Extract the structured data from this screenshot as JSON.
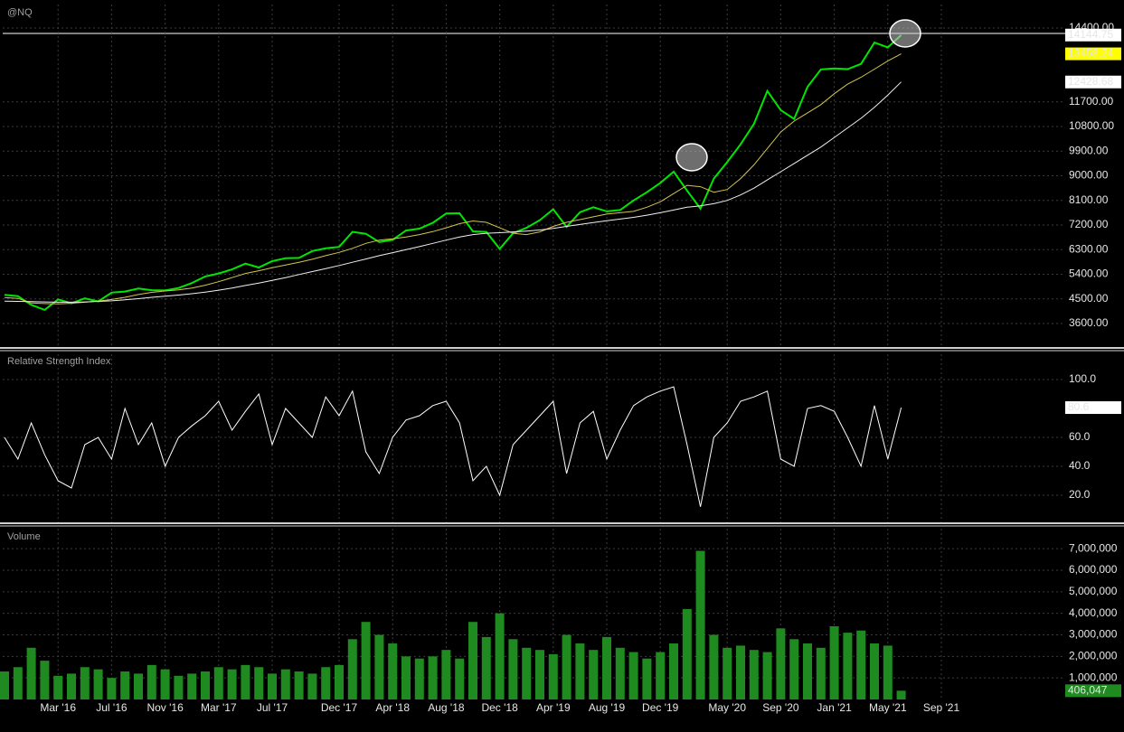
{
  "chart_data": [
    {
      "type": "line",
      "title": "@NQ",
      "grid": true,
      "ylim": [
        2775,
        15260
      ],
      "yticks": [
        {
          "value": 3600,
          "label": "3600.00"
        },
        {
          "value": 4500,
          "label": "4500.00"
        },
        {
          "value": 5400,
          "label": "5400.00"
        },
        {
          "value": 6300,
          "label": "6300.00"
        },
        {
          "value": 7200,
          "label": "7200.00"
        },
        {
          "value": 8100,
          "label": "8100.00"
        },
        {
          "value": 9000,
          "label": "9000.00"
        },
        {
          "value": 9900,
          "label": "9900.00"
        },
        {
          "value": 10800,
          "label": "10800.00"
        },
        {
          "value": 11700,
          "label": "11700.00"
        },
        {
          "value": 14400,
          "label": "14400.00"
        }
      ],
      "series": [
        {
          "color": "#00e600",
          "width": 2,
          "tag_color": "#ffffff",
          "values": [
            4650,
            4600,
            4280,
            4100,
            4480,
            4340,
            4520,
            4410,
            4730,
            4770,
            4880,
            4820,
            4810,
            4900,
            5080,
            5320,
            5430,
            5580,
            5790,
            5650,
            5880,
            5990,
            6000,
            6250,
            6350,
            6400,
            6950,
            6880,
            6580,
            6660,
            7000,
            7070,
            7280,
            7620,
            7630,
            6970,
            6950,
            6330,
            6900,
            7100,
            7380,
            7780,
            7130,
            7670,
            7850,
            7700,
            7750,
            8100,
            8400,
            8740,
            9150,
            8460,
            7800,
            8900,
            9500,
            10150,
            10900,
            12100,
            11400,
            11080,
            12250,
            12890,
            12920,
            12900,
            13090,
            13870,
            13690,
            14144.75,
            null,
            null,
            null
          ]
        },
        {
          "color": "#d4c64a",
          "width": 1,
          "tag_color": "#ffff00",
          "values": [
            4550,
            4520,
            4350,
            4330,
            4320,
            4340,
            4380,
            4420,
            4480,
            4560,
            4660,
            4740,
            4790,
            4830,
            4900,
            5000,
            5130,
            5280,
            5430,
            5530,
            5640,
            5740,
            5840,
            5950,
            6080,
            6200,
            6350,
            6530,
            6650,
            6700,
            6760,
            6850,
            6960,
            7100,
            7250,
            7350,
            7300,
            7100,
            6900,
            6850,
            6950,
            7150,
            7300,
            7400,
            7500,
            7600,
            7650,
            7700,
            7850,
            8050,
            8350,
            8650,
            8600,
            8400,
            8500,
            8900,
            9400,
            10000,
            10600,
            11000,
            11300,
            11600,
            12000,
            12350,
            12600,
            12900,
            13200,
            13458.24,
            null,
            null,
            null
          ]
        },
        {
          "color": "#f0f0f0",
          "width": 1,
          "tag_color": "#ffffff",
          "values": [
            4420,
            4410,
            4400,
            4390,
            4380,
            4380,
            4390,
            4410,
            4430,
            4470,
            4510,
            4560,
            4600,
            4640,
            4690,
            4750,
            4820,
            4900,
            4990,
            5080,
            5180,
            5280,
            5390,
            5500,
            5610,
            5720,
            5840,
            5960,
            6080,
            6190,
            6300,
            6410,
            6530,
            6650,
            6760,
            6850,
            6900,
            6920,
            6950,
            6980,
            7020,
            7080,
            7150,
            7220,
            7290,
            7360,
            7420,
            7480,
            7560,
            7650,
            7750,
            7850,
            7900,
            7980,
            8100,
            8300,
            8550,
            8850,
            9150,
            9450,
            9750,
            10050,
            10400,
            10750,
            11100,
            11500,
            11950,
            12428.68,
            null,
            null,
            null
          ]
        }
      ]
    },
    {
      "type": "line",
      "title": "Relative Strength Index",
      "grid": true,
      "ylim": [
        1.25,
        117.5
      ],
      "yticks": [
        {
          "value": 20,
          "label": "20.0"
        },
        {
          "value": 40,
          "label": "40.0"
        },
        {
          "value": 60,
          "label": "60.0"
        },
        {
          "value": 100,
          "label": "100.0"
        }
      ],
      "series": [
        {
          "color": "#ffffff",
          "width": 1,
          "tag_color": "#ffffff",
          "values": [
            60,
            45,
            70,
            48,
            30,
            25,
            55,
            60,
            45,
            80,
            55,
            70,
            40,
            60,
            68,
            75,
            85,
            65,
            78,
            90,
            55,
            80,
            70,
            60,
            88,
            75,
            92,
            50,
            35,
            60,
            72,
            75,
            82,
            85,
            70,
            30,
            40,
            20,
            55,
            65,
            75,
            85,
            35,
            70,
            78,
            45,
            65,
            82,
            88,
            92,
            95,
            55,
            12,
            60,
            70,
            85,
            88,
            92,
            45,
            40,
            80,
            82,
            78,
            60,
            40,
            82,
            45,
            80.6,
            null,
            null,
            null
          ]
        }
      ]
    },
    {
      "type": "bar",
      "title": "Volume",
      "grid": true,
      "color": "#1f8a1f",
      "tag_color": "#1f8a1f",
      "ylim": [
        0,
        7930000
      ],
      "yticks": [
        {
          "value": 1000000,
          "label": "1,000,000"
        },
        {
          "value": 2000000,
          "label": "2,000,000"
        },
        {
          "value": 3000000,
          "label": "3,000,000"
        },
        {
          "value": 4000000,
          "label": "4,000,000"
        },
        {
          "value": 5000000,
          "label": "5,000,000"
        },
        {
          "value": 6000000,
          "label": "6,000,000"
        },
        {
          "value": 7000000,
          "label": "7,000,000"
        }
      ],
      "categories": [
        null,
        null,
        null,
        null,
        "Mar '16",
        null,
        null,
        null,
        "Jul '16",
        null,
        null,
        null,
        "Nov '16",
        null,
        null,
        null,
        "Mar '17",
        null,
        null,
        null,
        "Jul '17",
        null,
        null,
        null,
        null,
        "Dec '17",
        null,
        null,
        null,
        "Apr '18",
        null,
        null,
        null,
        "Aug '18",
        null,
        null,
        null,
        "Dec '18",
        null,
        null,
        null,
        "Apr '19",
        null,
        null,
        null,
        "Aug '19",
        null,
        null,
        null,
        "Dec '19",
        null,
        null,
        null,
        null,
        "May '20",
        null,
        null,
        null,
        "Sep '20",
        null,
        null,
        null,
        "Jan '21",
        null,
        null,
        null,
        "May '21",
        null,
        null,
        null,
        "Sep '21"
      ],
      "values": [
        1300000,
        1500000,
        2400000,
        1800000,
        1100000,
        1200000,
        1500000,
        1400000,
        1000000,
        1300000,
        1200000,
        1600000,
        1400000,
        1100000,
        1200000,
        1300000,
        1500000,
        1400000,
        1600000,
        1500000,
        1200000,
        1400000,
        1300000,
        1200000,
        1500000,
        1600000,
        2800000,
        3600000,
        3000000,
        2600000,
        2000000,
        1900000,
        2000000,
        2300000,
        1900000,
        3600000,
        2900000,
        4000000,
        2800000,
        2400000,
        2300000,
        2100000,
        3000000,
        2600000,
        2300000,
        2900000,
        2400000,
        2200000,
        1900000,
        2200000,
        2600000,
        4200000,
        6900000,
        3000000,
        2400000,
        2500000,
        2300000,
        2200000,
        3300000,
        2800000,
        2600000,
        2400000,
        3400000,
        3100000,
        3200000,
        2600000,
        2500000,
        406047,
        null,
        null,
        null
      ],
      "value_labels": [
        null,
        null,
        null,
        null,
        null,
        null,
        null,
        null,
        null,
        null,
        null,
        null,
        null,
        null,
        null,
        null,
        null,
        null,
        null,
        null,
        null,
        null,
        null,
        null,
        null,
        null,
        null,
        null,
        null,
        null,
        null,
        null,
        null,
        null,
        null,
        null,
        null,
        null,
        null,
        null,
        null,
        null,
        null,
        null,
        null,
        null,
        null,
        null,
        null,
        null,
        null,
        null,
        null,
        null,
        null,
        null,
        null,
        null,
        null,
        null,
        null,
        null,
        null,
        null,
        null,
        null,
        null,
        "406,047",
        null,
        null,
        null
      ]
    }
  ]
}
